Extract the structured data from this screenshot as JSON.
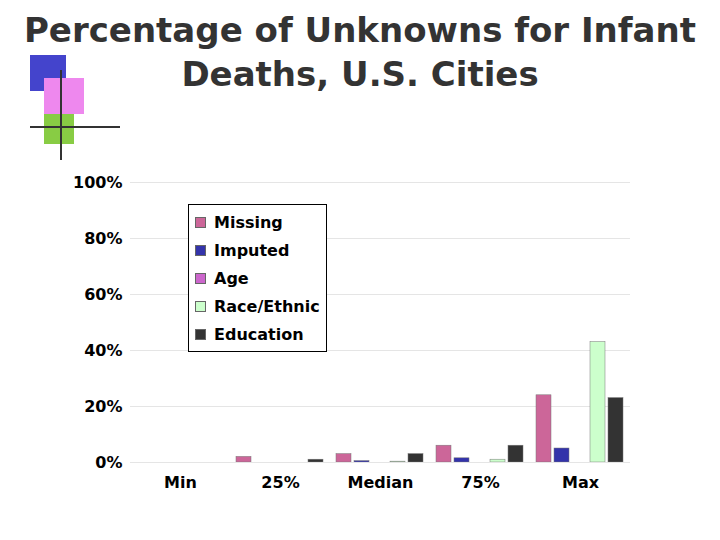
{
  "chart_data": {
    "type": "bar",
    "title": "Percentage of Unknowns for Infant Deaths, U.S. Cities",
    "categories": [
      "Min",
      "25%",
      "Median",
      "75%",
      "Max"
    ],
    "series": [
      {
        "name": "Missing",
        "color": "#cc6699",
        "values": [
          0,
          2,
          3,
          6,
          24
        ]
      },
      {
        "name": "Imputed",
        "color": "#3333aa",
        "values": [
          0,
          0,
          0.5,
          1.5,
          5
        ]
      },
      {
        "name": "Age",
        "color": "#cc66cc",
        "values": [
          0,
          0,
          0,
          0,
          0
        ]
      },
      {
        "name": "Race/Ethnic",
        "color": "#ccffcc",
        "values": [
          0,
          0,
          0.3,
          1,
          43
        ]
      },
      {
        "name": "Education",
        "color": "#333333",
        "values": [
          0,
          1,
          3,
          6,
          23
        ]
      }
    ],
    "ylim": [
      0,
      100
    ],
    "yticks": [
      {
        "value": 0,
        "label": "0%"
      },
      {
        "value": 20,
        "label": "20%"
      },
      {
        "value": 40,
        "label": "40%"
      },
      {
        "value": 60,
        "label": "60%"
      },
      {
        "value": 80,
        "label": "80%"
      },
      {
        "value": 100,
        "label": "100%"
      }
    ],
    "grid": true,
    "legend": "top-left"
  }
}
